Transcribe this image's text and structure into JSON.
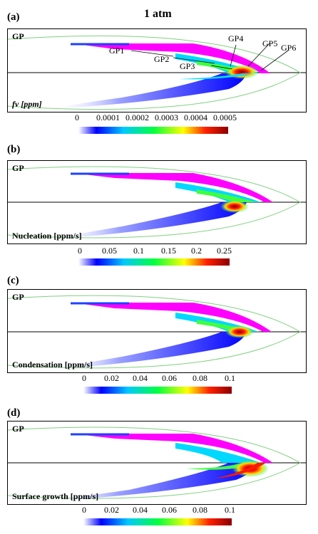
{
  "title": "1 atm",
  "colors": {
    "flame_edge": "#7fd07f",
    "fill_top": "#ff00ff",
    "centerline": "#000000"
  },
  "panels": [
    {
      "label": "(a)",
      "gp": "GP",
      "quantity": "fv [ppm]",
      "ticks": [
        "0",
        "0.0001",
        "0.0002",
        "0.0003",
        "0.0004",
        "0.0005"
      ],
      "annotations": [
        "GP1",
        "GP2",
        "GP3",
        "GP4",
        "GP5",
        "GP6"
      ]
    },
    {
      "label": "(b)",
      "gp": "GP",
      "quantity": "Nucleation [ppm/s]",
      "ticks": [
        "0",
        "0.05",
        "0.1",
        "0.15",
        "0.2",
        "0.25"
      ]
    },
    {
      "label": "(c)",
      "gp": "GP",
      "quantity": "Condensation [ppm/s]",
      "ticks": [
        "0",
        "0.02",
        "0.04",
        "0.06",
        "0.08",
        "0.1"
      ]
    },
    {
      "label": "(d)",
      "gp": "GP",
      "quantity": "Surface growth [ppm/s]",
      "ticks": [
        "0",
        "0.02",
        "0.04",
        "0.06",
        "0.08",
        "0.1"
      ]
    }
  ]
}
